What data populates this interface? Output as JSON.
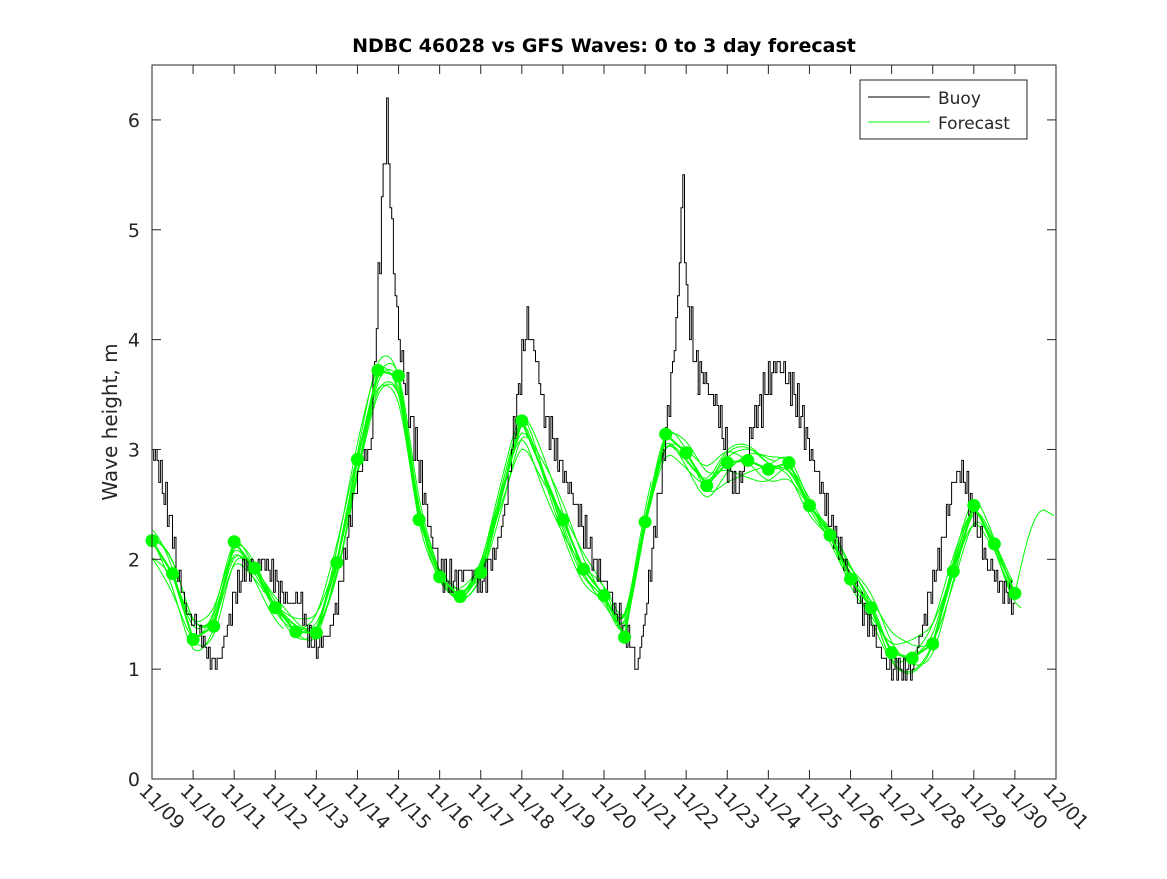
{
  "chart_data": {
    "type": "line",
    "title": "NDBC 46028 vs GFS Waves: 0 to 3 day forecast",
    "xlabel": "",
    "ylabel": "Wave height, m",
    "ylim": [
      0,
      6.5
    ],
    "yticks": [
      0,
      1,
      2,
      3,
      4,
      5,
      6
    ],
    "xlim_days": [
      0,
      22
    ],
    "xtick_labels": [
      "11/09",
      "11/10",
      "11/11",
      "11/12",
      "11/13",
      "11/14",
      "11/15",
      "11/16",
      "11/17",
      "11/18",
      "11/19",
      "11/20",
      "11/21",
      "11/22",
      "11/23",
      "11/24",
      "11/25",
      "11/26",
      "11/27",
      "11/28",
      "11/29",
      "11/30",
      "12/01"
    ],
    "legend": {
      "position": "top-right",
      "entries": [
        "Buoy",
        "Forecast"
      ]
    },
    "colors": {
      "buoy": "#000000",
      "forecast": "#00ff00"
    },
    "grid": false,
    "series": [
      {
        "name": "Buoy",
        "x_days": [
          0,
          0.1,
          0.3,
          0.5,
          0.6,
          0.8,
          1.0,
          1.2,
          1.4,
          1.6,
          1.8,
          2.0,
          2.2,
          2.5,
          2.7,
          3.0,
          3.3,
          3.6,
          3.8,
          4.0,
          4.3,
          4.6,
          4.9,
          5.1,
          5.3,
          5.5,
          5.6,
          5.7,
          5.8,
          5.9,
          6.0,
          6.2,
          6.5,
          6.8,
          7.0,
          7.3,
          7.6,
          8.0,
          8.3,
          8.6,
          8.8,
          9.0,
          9.1,
          9.3,
          9.5,
          9.8,
          10.1,
          10.4,
          10.7,
          11.0,
          11.3,
          11.6,
          11.8,
          12.0,
          12.2,
          12.4,
          12.6,
          12.8,
          12.9,
          13.0,
          13.2,
          13.5,
          13.8,
          14.0,
          14.2,
          14.4,
          14.6,
          14.9,
          15.2,
          15.5,
          15.8,
          16.0,
          16.3,
          16.6,
          16.9,
          17.2,
          17.5,
          17.8,
          18.0,
          18.3,
          18.5,
          18.7,
          19.0,
          19.3,
          19.5,
          19.7,
          20.0,
          20.3,
          20.6,
          20.8,
          21.0
        ],
        "values": [
          3.0,
          2.9,
          2.6,
          2.2,
          1.9,
          1.6,
          1.4,
          1.3,
          1.05,
          1.1,
          1.3,
          1.7,
          1.9,
          1.9,
          2.0,
          1.8,
          1.6,
          1.6,
          1.3,
          1.2,
          1.3,
          1.8,
          2.6,
          2.9,
          3.0,
          4.5,
          5.3,
          6.1,
          5.2,
          4.5,
          4.0,
          3.5,
          2.8,
          2.2,
          1.9,
          1.8,
          1.9,
          1.8,
          2.0,
          2.5,
          3.2,
          3.8,
          4.2,
          3.9,
          3.4,
          3.0,
          2.7,
          2.4,
          2.0,
          1.8,
          1.5,
          1.3,
          1.0,
          1.5,
          2.2,
          2.8,
          3.5,
          4.4,
          5.5,
          4.4,
          3.8,
          3.6,
          3.3,
          2.9,
          2.6,
          2.8,
          3.2,
          3.5,
          3.8,
          3.6,
          3.3,
          3.0,
          2.6,
          2.2,
          1.9,
          1.6,
          1.4,
          1.1,
          1.0,
          1.0,
          1.0,
          1.3,
          1.8,
          2.3,
          2.7,
          2.8,
          2.4,
          2.0,
          1.8,
          1.7,
          1.6
        ]
      },
      {
        "name": "Forecast",
        "x_days": [
          0,
          0.5,
          1,
          1.5,
          2,
          2.5,
          3,
          3.5,
          4,
          4.5,
          5,
          5.5,
          6,
          6.5,
          7,
          7.5,
          8,
          9,
          10,
          10.5,
          11,
          11.5,
          12,
          12.5,
          13,
          13.5,
          14,
          14.5,
          15,
          15.5,
          16,
          16.5,
          17,
          17.5,
          18,
          18.5,
          19,
          19.5,
          20,
          20.5,
          21
        ],
        "values": [
          2.17,
          1.87,
          1.27,
          1.39,
          2.16,
          1.92,
          1.56,
          1.34,
          1.33,
          1.97,
          2.91,
          3.72,
          3.67,
          2.36,
          1.84,
          1.66,
          1.88,
          3.26,
          2.36,
          1.91,
          1.67,
          1.29,
          2.34,
          3.14,
          2.97,
          2.67,
          2.88,
          2.9,
          2.82,
          2.88,
          2.49,
          2.22,
          1.82,
          1.56,
          1.15,
          1.1,
          1.23,
          1.89,
          2.49,
          2.14,
          1.69
        ]
      }
    ]
  }
}
